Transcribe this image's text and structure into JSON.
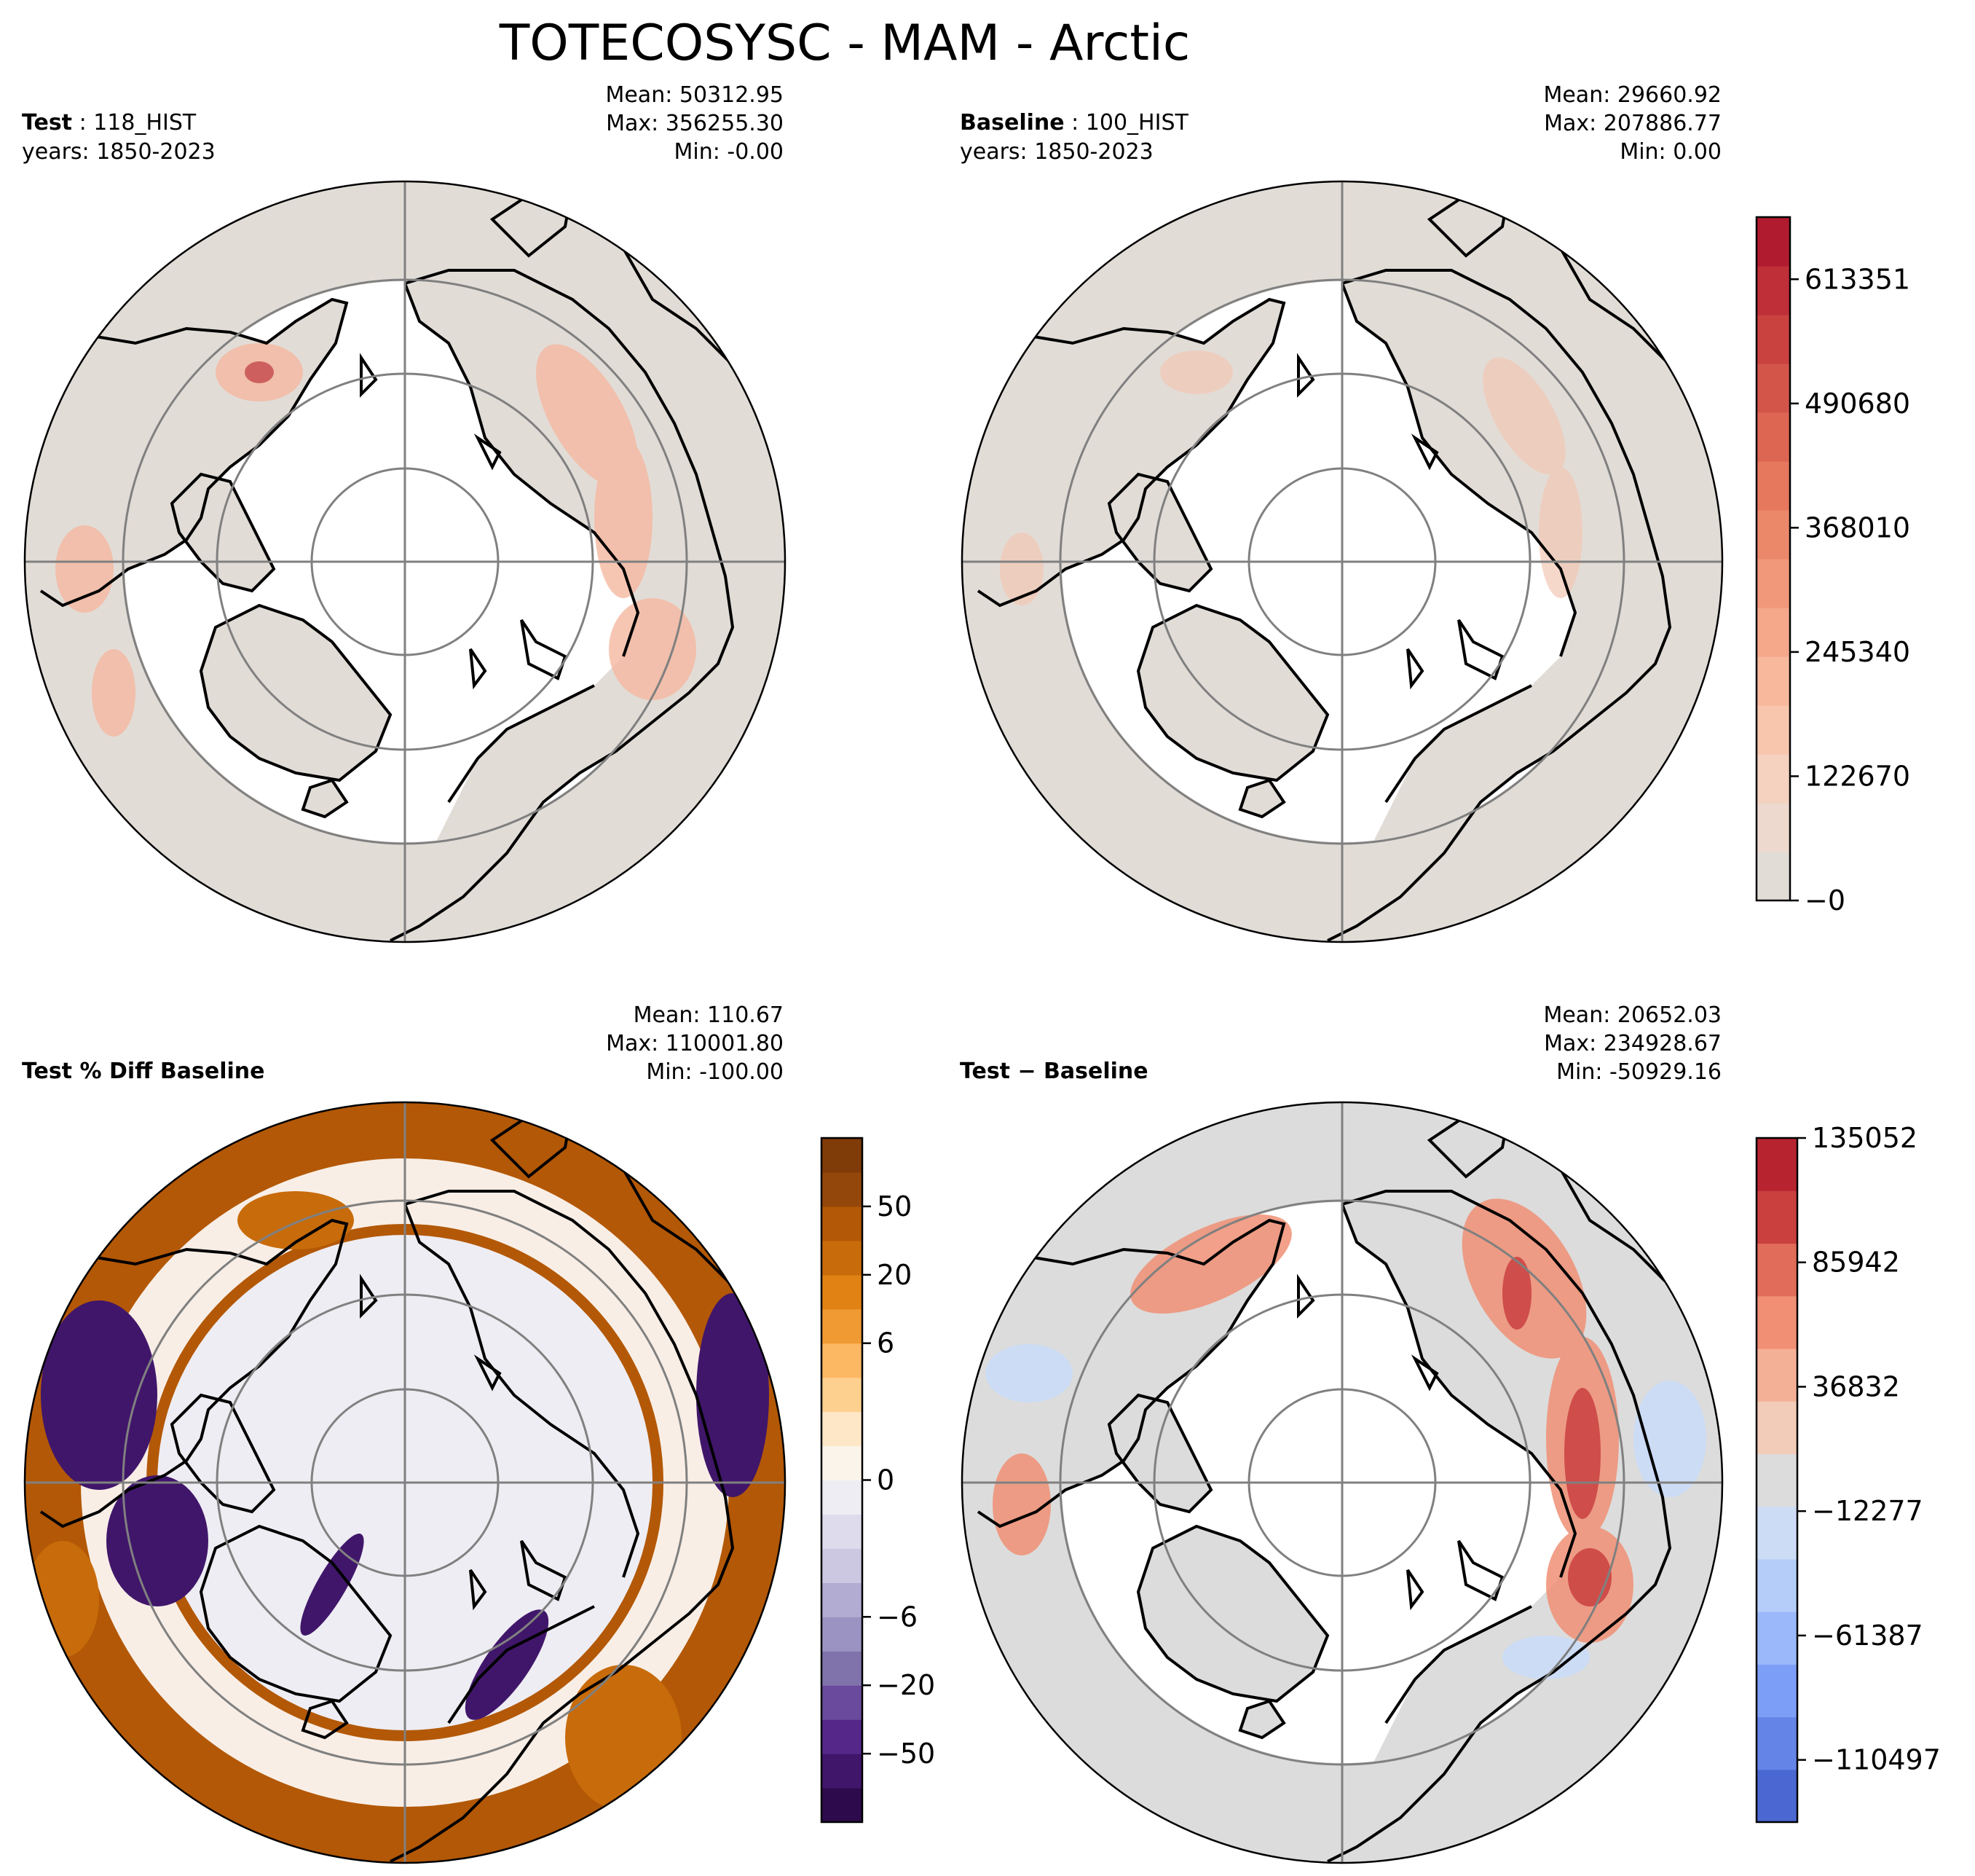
{
  "figure": {
    "title": "TOTECOSYSC - MAM - Arctic"
  },
  "panels": {
    "test": {
      "label_bold": "Test",
      "label_rest": " : 118_HIST",
      "years": "years: 1850-2023",
      "mean": "Mean: 50312.95",
      "max": "Max: 356255.30",
      "min": "Min: -0.00"
    },
    "baseline": {
      "label_bold": "Baseline",
      "label_rest": " : 100_HIST",
      "years": "years: 1850-2023",
      "mean": "Mean: 29660.92",
      "max": "Max: 207886.77",
      "min": "Min:  0.00"
    },
    "pctdiff": {
      "label_bold": "Test % Diff Baseline",
      "mean": "Mean: 110.67",
      "max": "Max: 110001.80",
      "min": "Min: -100.00"
    },
    "diff": {
      "label_bold": "Test − Baseline",
      "mean": "Mean: 20652.03",
      "max": "Max: 234928.67",
      "min": "Min: -50929.16"
    }
  },
  "colorbars": {
    "main": {
      "colors": [
        "#e2dcd7",
        "#eed9ce",
        "#f5d1c0",
        "#f8c6ad",
        "#f7b89c",
        "#f5a88a",
        "#f1987a",
        "#ec886a",
        "#e6785e",
        "#dd6653",
        "#d3554a",
        "#c94240",
        "#be2f37",
        "#b01b2f"
      ],
      "ticks": [
        "−0",
        "122670",
        "245340",
        "368010",
        "490680",
        "613351"
      ],
      "tick_values": [
        0,
        122670,
        245340,
        368010,
        490680,
        613351
      ],
      "vmin": 0,
      "vmax": 674686
    },
    "pctdiff": {
      "colors": [
        "#2d0a4b",
        "#40166a",
        "#542788",
        "#6a4a9c",
        "#8073ac",
        "#9b93c1",
        "#b2abd2",
        "#ccc8e2",
        "#dddbec",
        "#eeedf3",
        "#faf4ea",
        "#fee7c7",
        "#fdd08f",
        "#fdb863",
        "#f09a33",
        "#e08214",
        "#c86b0a",
        "#b35806",
        "#94470a",
        "#7f3b08"
      ],
      "ticks": [
        "−50",
        "−20",
        "−6",
        "0",
        "6",
        "20",
        "50"
      ],
      "tick_pos": [
        2,
        4,
        6,
        10,
        14,
        16,
        18
      ]
    },
    "diff": {
      "colors": [
        "#4b67d1",
        "#6484e8",
        "#7d9ef6",
        "#9bb8fb",
        "#b5cdf9",
        "#ccdcf5",
        "#dcdcdc",
        "#f2ccb8",
        "#f4b096",
        "#f08f74",
        "#e06c59",
        "#c9403f",
        "#b72430"
      ],
      "ticks": [
        "−110497",
        "−61387",
        "−12277",
        "36832",
        "85942",
        "135052"
      ],
      "tick_values": [
        -110497,
        -61387,
        -12277,
        36832,
        85942,
        135052
      ],
      "vmin": -135052,
      "vmax": 135052
    }
  }
}
